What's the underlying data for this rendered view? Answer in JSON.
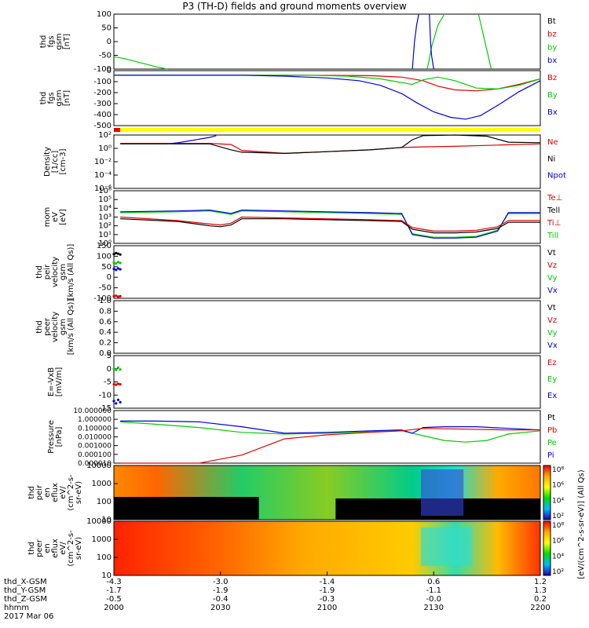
{
  "title": "P3 (TH-D) fields and ground moments overview",
  "colors": {
    "black": "#000000",
    "red": "#e00000",
    "green": "#00cc00",
    "blue": "#0000e0",
    "yellow": "#ffff00"
  },
  "chart_data": [
    {
      "type": "line",
      "panel": "fgs_gsm_zoom",
      "ylabel_lines": [
        "thd",
        "fgs",
        "gsm",
        "[nT]"
      ],
      "ylim": [
        -100,
        100
      ],
      "yticks": [
        "100",
        "50",
        "0",
        "-50",
        "-100"
      ],
      "legend": [
        {
          "label": "Bt",
          "color": "black"
        },
        {
          "label": "bz",
          "color": "red"
        },
        {
          "label": "by",
          "color": "green"
        },
        {
          "label": "bx",
          "color": "blue"
        }
      ],
      "series": [
        {
          "name": "by",
          "color": "green",
          "x": [
            0,
            5,
            10,
            15,
            20,
            25
          ],
          "y": [
            -55,
            -62,
            -72,
            -82,
            -92,
            -100
          ]
        },
        {
          "name": "by",
          "color": "green",
          "x": [
            147,
            149,
            152,
            155
          ],
          "y": [
            -100,
            -20,
            60,
            100
          ]
        },
        {
          "name": "by",
          "color": "green",
          "x": [
            171,
            174,
            177
          ],
          "y": [
            100,
            0,
            -100
          ]
        },
        {
          "name": "bx",
          "color": "blue",
          "x": [
            140,
            141,
            142,
            143
          ],
          "y": [
            -100,
            0,
            60,
            100
          ]
        },
        {
          "name": "bx",
          "color": "blue",
          "x": [
            148,
            148.5,
            149,
            150
          ],
          "y": [
            100,
            0,
            -50,
            -100
          ]
        }
      ]
    },
    {
      "type": "line",
      "panel": "fgs_gsm",
      "ylabel_lines": [
        "thd",
        "fgs",
        "gsm",
        "[nT]"
      ],
      "ylim": [
        -550,
        50
      ],
      "yticks": [
        "0",
        "-100",
        "-200",
        "-300",
        "-400",
        "-500"
      ],
      "legend": [
        {
          "label": "Bz",
          "color": "red"
        },
        {
          "label": "By",
          "color": "green"
        },
        {
          "label": "Bx",
          "color": "blue"
        }
      ],
      "series": [
        {
          "name": "Bz",
          "color": "red",
          "x": [
            0,
            30,
            60,
            90,
            120,
            135,
            145,
            152,
            160,
            170,
            180,
            190,
            200
          ],
          "y": [
            0,
            0,
            0,
            0,
            -5,
            -20,
            -60,
            -120,
            -160,
            -170,
            -150,
            -100,
            -40
          ]
        },
        {
          "name": "By",
          "color": "green",
          "x": [
            0,
            30,
            60,
            90,
            110,
            125,
            135,
            140,
            145,
            152,
            160,
            170,
            180,
            190,
            200
          ],
          "y": [
            0,
            0,
            0,
            0,
            -10,
            -40,
            -80,
            -100,
            -50,
            -20,
            -60,
            -140,
            -150,
            -110,
            -40
          ]
        },
        {
          "name": "Bx",
          "color": "blue",
          "x": [
            0,
            30,
            60,
            80,
            100,
            115,
            125,
            135,
            142,
            150,
            158,
            165,
            172,
            180,
            190,
            200
          ],
          "y": [
            0,
            0,
            0,
            -10,
            -30,
            -60,
            -110,
            -200,
            -300,
            -400,
            -460,
            -480,
            -440,
            -330,
            -180,
            -60
          ]
        }
      ]
    },
    {
      "type": "line",
      "panel": "density",
      "yscale": "log",
      "ylabel_lines": [
        "Density",
        "[1/cc]",
        "[cm-3]"
      ],
      "ylim": [
        -6,
        3
      ],
      "yticks": [
        "10²",
        "10⁰",
        "10⁻²",
        "10⁻⁴",
        "10⁻⁶"
      ],
      "legend": [
        {
          "label": "Ne",
          "color": "red"
        },
        {
          "label": "Ni",
          "color": "black"
        },
        {
          "label": "Npot",
          "color": "blue"
        }
      ],
      "series": [
        {
          "name": "Ne",
          "color": "red",
          "x": [
            3,
            20,
            40,
            45,
            55,
            60,
            80,
            100,
            120,
            135,
            145,
            160,
            180,
            200
          ],
          "y": [
            1.6,
            1.6,
            1.6,
            1.6,
            1.4,
            0.4,
            -0.1,
            0.2,
            0.5,
            0.9,
            1.0,
            1.1,
            1.3,
            1.5
          ]
        },
        {
          "name": "Ni",
          "color": "black",
          "x": [
            3,
            20,
            40,
            45,
            55,
            60,
            80,
            100,
            120,
            135,
            140,
            145,
            160,
            175,
            185,
            200
          ],
          "y": [
            1.5,
            1.5,
            1.5,
            1.5,
            0.5,
            0.1,
            -0.1,
            0.2,
            0.5,
            0.9,
            2.2,
            2.9,
            3,
            2.8,
            1.8,
            1.7
          ]
        },
        {
          "name": "Npot",
          "color": "blue",
          "x": [
            25,
            30,
            35,
            40,
            45,
            48
          ],
          "y": [
            1.5,
            1.7,
            2.0,
            2.3,
            2.6,
            2.9
          ]
        }
      ]
    },
    {
      "type": "line",
      "panel": "temperature",
      "yscale": "log",
      "ylabel_lines": [
        "mom",
        "eV",
        "[eV]"
      ],
      "ylim": [
        0,
        6
      ],
      "yticks": [
        "10⁶",
        "10⁵",
        "10⁴",
        "10³",
        "10²",
        "10¹",
        "10⁰"
      ],
      "legend": [
        {
          "label": "Te⊥",
          "color": "red"
        },
        {
          "label": "Tell",
          "color": "black"
        },
        {
          "label": "Ti⊥",
          "color": "red"
        },
        {
          "label": "Till",
          "color": "green"
        }
      ],
      "series": [
        {
          "name": "Till",
          "color": "green",
          "x": [
            3,
            30,
            45,
            50,
            55,
            60,
            80,
            100,
            120,
            135,
            140,
            150,
            160,
            170,
            180,
            185,
            200
          ],
          "y": [
            3.5,
            3.6,
            3.7,
            3.5,
            3.3,
            3.7,
            3.6,
            3.5,
            3.4,
            3.3,
            1.1,
            0.7,
            0.7,
            0.8,
            1.5,
            3.4,
            3.4
          ]
        },
        {
          "name": "Vx",
          "color": "blue",
          "x": [
            3,
            30,
            45,
            50,
            55,
            60,
            80,
            100,
            120,
            135,
            140,
            150,
            160,
            170,
            180,
            185,
            200
          ],
          "y": [
            3.6,
            3.7,
            3.8,
            3.6,
            3.4,
            3.8,
            3.7,
            3.6,
            3.5,
            3.4,
            1.0,
            0.6,
            0.6,
            0.7,
            1.4,
            3.5,
            3.5
          ]
        },
        {
          "name": "Tell",
          "color": "black",
          "x": [
            3,
            30,
            45,
            50,
            55,
            60,
            80,
            100,
            120,
            135,
            140,
            150,
            160,
            170,
            180,
            185,
            200
          ],
          "y": [
            2.8,
            2.5,
            2.0,
            1.9,
            2.1,
            2.8,
            2.8,
            2.7,
            2.6,
            2.5,
            1.6,
            1.2,
            1.2,
            1.3,
            1.7,
            2.4,
            2.4
          ]
        },
        {
          "name": "Te⊥",
          "color": "red",
          "x": [
            3,
            30,
            45,
            50,
            55,
            60,
            80,
            100,
            120,
            135,
            140,
            150,
            160,
            170,
            180,
            185,
            200
          ],
          "y": [
            3.0,
            2.6,
            2.2,
            2.1,
            2.3,
            3.0,
            2.9,
            2.8,
            2.7,
            2.6,
            1.8,
            1.4,
            1.4,
            1.5,
            1.9,
            2.6,
            2.6
          ]
        }
      ]
    },
    {
      "type": "scatter",
      "panel": "peir_velocity",
      "ylabel_lines": [
        "thd",
        "peir",
        "velocity",
        "gsm",
        "[km/s (All Qs)]"
      ],
      "ylim": [
        -100,
        150
      ],
      "yticks": [
        "150",
        "100",
        "50",
        "0",
        "-50",
        "-100"
      ],
      "legend": [
        {
          "label": "Vt",
          "color": "black"
        },
        {
          "label": "Vz",
          "color": "red"
        },
        {
          "label": "Vy",
          "color": "green"
        },
        {
          "label": "Vx",
          "color": "blue"
        }
      ],
      "series": [
        {
          "name": "Vt",
          "color": "black",
          "x": [
            0,
            1,
            2,
            3
          ],
          "y": [
            110,
            115,
            112,
            108
          ]
        },
        {
          "name": "Vz",
          "color": "red",
          "x": [
            0,
            1,
            2,
            3
          ],
          "y": [
            -90,
            -88,
            -92,
            -90
          ]
        },
        {
          "name": "Vy",
          "color": "green",
          "x": [
            0,
            1,
            2,
            3
          ],
          "y": [
            70,
            65,
            72,
            68
          ]
        },
        {
          "name": "Vx",
          "color": "blue",
          "x": [
            0,
            1,
            2,
            3
          ],
          "y": [
            40,
            35,
            42,
            38
          ]
        }
      ]
    },
    {
      "type": "line",
      "panel": "peer_velocity",
      "ylabel_lines": [
        "thd",
        "peer",
        "velocity",
        "gsm",
        "[km/s (All Qs)]"
      ],
      "ylim": [
        0,
        1
      ],
      "yticks": [
        "1.0",
        "0.8",
        "0.6",
        "0.4",
        "0.2",
        "0.0"
      ],
      "legend": [
        {
          "label": "Vt",
          "color": "black"
        },
        {
          "label": "Vz",
          "color": "red"
        },
        {
          "label": "Vy",
          "color": "green"
        },
        {
          "label": "Vx",
          "color": "blue"
        }
      ],
      "series": []
    },
    {
      "type": "scatter",
      "panel": "e_field",
      "ylabel_lines": [
        "E=-VxB",
        "[mV/m]"
      ],
      "ylim": [
        -16,
        6
      ],
      "yticks": [
        "5",
        "0",
        "-5",
        "-10",
        "-15"
      ],
      "legend": [
        {
          "label": "Ez",
          "color": "red"
        },
        {
          "label": "Ey",
          "color": "green"
        },
        {
          "label": "Ex",
          "color": "blue"
        }
      ],
      "series": [
        {
          "name": "Ez",
          "color": "red",
          "x": [
            0,
            1,
            2,
            3
          ],
          "y": [
            -6,
            -6.2,
            -5.8,
            -6
          ]
        },
        {
          "name": "Ey",
          "color": "green",
          "x": [
            0,
            1,
            2,
            3
          ],
          "y": [
            0.5,
            0,
            1,
            0.2
          ]
        },
        {
          "name": "Ex",
          "color": "blue",
          "x": [
            0,
            1,
            2,
            3
          ],
          "y": [
            -13,
            -14,
            -12.5,
            -13.5
          ]
        }
      ]
    },
    {
      "type": "line",
      "panel": "pressure",
      "yscale": "log",
      "ylabel_lines": [
        "Pressure",
        "[nPa]"
      ],
      "ylim": [
        -5,
        1.5
      ],
      "yticks": [
        "10.000000",
        "1.000000",
        "0.100000",
        "0.010000",
        "0.001000",
        "0.000100",
        "0.000010"
      ],
      "legend": [
        {
          "label": "Pt",
          "color": "black"
        },
        {
          "label": "Pb",
          "color": "red"
        },
        {
          "label": "Pe",
          "color": "green"
        },
        {
          "label": "Pi",
          "color": "blue"
        }
      ],
      "series": [
        {
          "name": "Pe",
          "color": "green",
          "x": [
            3,
            20,
            40,
            60,
            80,
            100,
            120,
            135,
            145,
            155,
            165,
            175,
            185,
            200
          ],
          "y": [
            0.1,
            -0.2,
            -0.6,
            -1.2,
            -1.4,
            -1.3,
            -1.1,
            -1.0,
            -1.6,
            -2.2,
            -2.4,
            -2.2,
            -1.4,
            -1.0
          ]
        },
        {
          "name": "Pi",
          "color": "blue",
          "x": [
            3,
            20,
            40,
            60,
            80,
            100,
            120,
            135,
            140,
            145,
            155,
            170,
            185,
            200
          ],
          "y": [
            0.2,
            0.2,
            0.1,
            -0.5,
            -1.3,
            -1.2,
            -1.0,
            -0.9,
            -1.3,
            -0.6,
            -0.5,
            -0.5,
            -0.7,
            -0.9
          ]
        },
        {
          "name": "Pb",
          "color": "red",
          "x": [
            3,
            20,
            40,
            60,
            80,
            100,
            120,
            135,
            145,
            165,
            185,
            200
          ],
          "y": [
            -5,
            -5,
            -5,
            -4,
            -2,
            -1.5,
            -1.2,
            -1.0,
            -0.7,
            -0.8,
            -0.9,
            -0.9
          ]
        }
      ]
    },
    {
      "type": "heatmap",
      "panel": "peir_eflux",
      "ylabel_lines": [
        "thd",
        "peir",
        "en",
        "eflux",
        "eV/",
        "(cm^2-s-",
        "sr-eV)"
      ],
      "yticks": [
        "10000",
        "1000",
        "100",
        "10"
      ]
    },
    {
      "type": "heatmap",
      "panel": "peer_eflux",
      "ylabel_lines": [
        "thd",
        "peer",
        "en",
        "eflux",
        "eV/",
        "(cm^2-s-",
        "sr-eV)"
      ],
      "yticks": [
        "10000",
        "1000",
        "100",
        "10"
      ]
    }
  ],
  "colorbar": {
    "label": "[eV/(cm^2-s-sr-eV)] (All Qs)",
    "ticks_top": [
      "10⁸",
      "10⁶",
      "10⁴",
      "10²"
    ],
    "ticks_bottom": [
      "10⁸",
      "10⁶",
      "10⁴",
      "10²"
    ]
  },
  "xaxis": {
    "rows": [
      {
        "label": "thd_X-GSM",
        "values": [
          "-4.3",
          "-3.0",
          "-1.4",
          "0.6",
          "1.2"
        ]
      },
      {
        "label": "thd_Y-GSM",
        "values": [
          "-1.7",
          "-1.9",
          "-1.9",
          "-1.1",
          "1.3"
        ]
      },
      {
        "label": "thd_Z-GSM",
        "values": [
          "-0.5",
          "-0.4",
          "-0.3",
          "-0.0",
          "0.2"
        ]
      },
      {
        "label": "hhmm",
        "values": [
          "2000",
          "2030",
          "2100",
          "2130",
          "2200"
        ]
      }
    ],
    "date": "2017 Mar 06"
  }
}
